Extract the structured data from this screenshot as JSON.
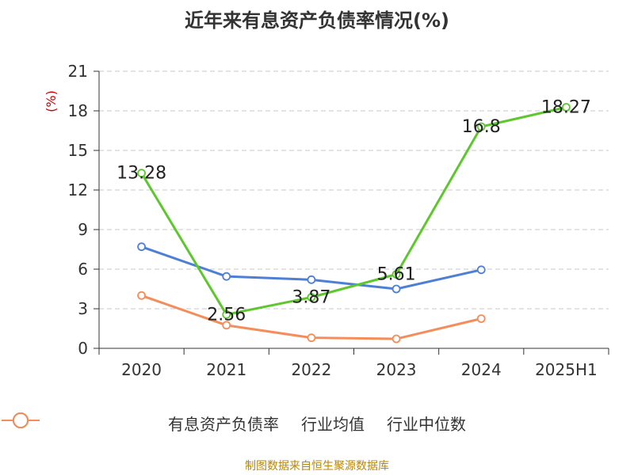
{
  "chart_data": {
    "type": "line",
    "title": "近年来有息资产负债率情况(%)",
    "ylabel": "(%)",
    "categories": [
      "2020",
      "2021",
      "2022",
      "2023",
      "2024",
      "2025H1"
    ],
    "ylim": [
      0,
      21
    ],
    "yticks": [
      0,
      3,
      6,
      9,
      12,
      15,
      18,
      21
    ],
    "grid": true,
    "legend_position": "bottom",
    "series": [
      {
        "name": "有息资产负债率",
        "color": "#5ec72d",
        "values": [
          13.28,
          2.56,
          3.87,
          5.61,
          16.8,
          18.27
        ],
        "labels": [
          "13.28",
          "2.56",
          "3.87",
          "5.61",
          "16.8",
          "18.27"
        ]
      },
      {
        "name": "行业均值",
        "color": "#4d7fd6",
        "values": [
          7.7,
          5.45,
          5.2,
          4.5,
          5.95,
          null
        ]
      },
      {
        "name": "行业中位数",
        "color": "#f58d5a",
        "values": [
          4.0,
          1.75,
          0.8,
          0.72,
          2.25,
          null
        ]
      }
    ]
  },
  "source": "制图数据来自恒生聚源数据库"
}
